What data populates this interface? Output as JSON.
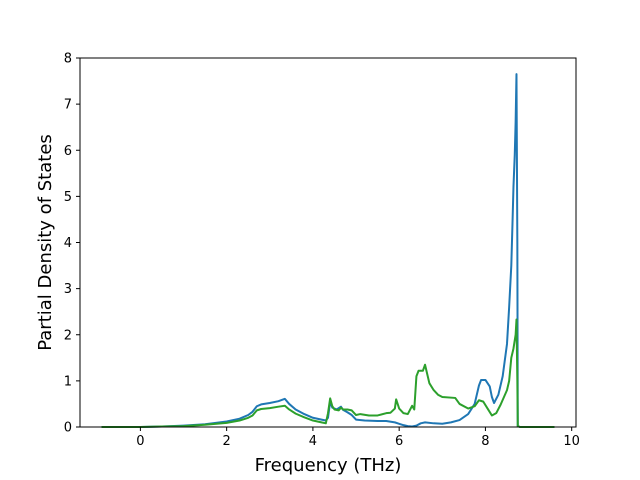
{
  "chart_data": {
    "type": "line",
    "title": "",
    "xlabel": "Frequency (THz)",
    "ylabel": "Partial Density of States",
    "xlim": [
      -1.4,
      10.1
    ],
    "ylim": [
      0,
      8
    ],
    "x_ticks": [
      0,
      2,
      4,
      6,
      8,
      10
    ],
    "y_ticks": [
      0,
      1,
      2,
      3,
      4,
      5,
      6,
      7,
      8
    ],
    "x_tick_labels": [
      "0",
      "2",
      "4",
      "6",
      "8",
      "10"
    ],
    "y_tick_labels": [
      "0",
      "1",
      "2",
      "3",
      "4",
      "5",
      "6",
      "7",
      "8"
    ],
    "grid": false,
    "legend": null,
    "series": [
      {
        "color": "#1f77b4",
        "points": [
          [
            -0.9,
            0
          ],
          [
            0.0,
            0.0
          ],
          [
            0.5,
            0.01
          ],
          [
            1.0,
            0.03
          ],
          [
            1.5,
            0.06
          ],
          [
            2.0,
            0.12
          ],
          [
            2.3,
            0.18
          ],
          [
            2.5,
            0.26
          ],
          [
            2.6,
            0.33
          ],
          [
            2.7,
            0.45
          ],
          [
            2.8,
            0.49
          ],
          [
            3.0,
            0.52
          ],
          [
            3.2,
            0.56
          ],
          [
            3.35,
            0.61
          ],
          [
            3.45,
            0.5
          ],
          [
            3.6,
            0.38
          ],
          [
            3.8,
            0.28
          ],
          [
            4.0,
            0.2
          ],
          [
            4.2,
            0.16
          ],
          [
            4.3,
            0.14
          ],
          [
            4.35,
            0.2
          ],
          [
            4.4,
            0.55
          ],
          [
            4.45,
            0.42
          ],
          [
            4.55,
            0.38
          ],
          [
            4.65,
            0.44
          ],
          [
            4.7,
            0.37
          ],
          [
            4.8,
            0.32
          ],
          [
            4.9,
            0.26
          ],
          [
            5.0,
            0.16
          ],
          [
            5.2,
            0.14
          ],
          [
            5.5,
            0.13
          ],
          [
            5.7,
            0.13
          ],
          [
            5.9,
            0.1
          ],
          [
            6.0,
            0.07
          ],
          [
            6.1,
            0.04
          ],
          [
            6.2,
            0.02
          ],
          [
            6.3,
            0.01
          ],
          [
            6.4,
            0.03
          ],
          [
            6.5,
            0.08
          ],
          [
            6.6,
            0.1
          ],
          [
            6.8,
            0.08
          ],
          [
            7.0,
            0.07
          ],
          [
            7.2,
            0.1
          ],
          [
            7.4,
            0.15
          ],
          [
            7.6,
            0.28
          ],
          [
            7.75,
            0.5
          ],
          [
            7.85,
            0.9
          ],
          [
            7.9,
            1.02
          ],
          [
            8.0,
            1.02
          ],
          [
            8.1,
            0.88
          ],
          [
            8.15,
            0.65
          ],
          [
            8.2,
            0.52
          ],
          [
            8.3,
            0.7
          ],
          [
            8.4,
            1.1
          ],
          [
            8.5,
            1.8
          ],
          [
            8.55,
            2.6
          ],
          [
            8.6,
            3.5
          ],
          [
            8.63,
            4.5
          ],
          [
            8.65,
            5.2
          ],
          [
            8.68,
            5.9
          ],
          [
            8.7,
            6.6
          ],
          [
            8.72,
            7.65
          ],
          [
            8.74,
            4.0
          ],
          [
            8.75,
            0.02
          ],
          [
            8.8,
            0
          ],
          [
            9.6,
            0
          ]
        ]
      },
      {
        "color": "#2ca02c",
        "points": [
          [
            -0.9,
            0
          ],
          [
            0.0,
            0.0
          ],
          [
            0.5,
            0.01
          ],
          [
            1.0,
            0.02
          ],
          [
            1.5,
            0.05
          ],
          [
            2.0,
            0.09
          ],
          [
            2.3,
            0.14
          ],
          [
            2.5,
            0.2
          ],
          [
            2.6,
            0.25
          ],
          [
            2.7,
            0.36
          ],
          [
            2.8,
            0.39
          ],
          [
            3.0,
            0.41
          ],
          [
            3.2,
            0.44
          ],
          [
            3.35,
            0.46
          ],
          [
            3.45,
            0.38
          ],
          [
            3.6,
            0.29
          ],
          [
            3.8,
            0.21
          ],
          [
            4.0,
            0.14
          ],
          [
            4.2,
            0.1
          ],
          [
            4.3,
            0.08
          ],
          [
            4.35,
            0.3
          ],
          [
            4.4,
            0.62
          ],
          [
            4.45,
            0.45
          ],
          [
            4.5,
            0.38
          ],
          [
            4.6,
            0.36
          ],
          [
            4.65,
            0.42
          ],
          [
            4.7,
            0.38
          ],
          [
            4.8,
            0.38
          ],
          [
            4.9,
            0.36
          ],
          [
            5.0,
            0.26
          ],
          [
            5.1,
            0.28
          ],
          [
            5.3,
            0.25
          ],
          [
            5.5,
            0.25
          ],
          [
            5.7,
            0.3
          ],
          [
            5.8,
            0.31
          ],
          [
            5.9,
            0.4
          ],
          [
            5.93,
            0.6
          ],
          [
            6.0,
            0.4
          ],
          [
            6.1,
            0.3
          ],
          [
            6.2,
            0.28
          ],
          [
            6.3,
            0.46
          ],
          [
            6.35,
            0.38
          ],
          [
            6.4,
            1.1
          ],
          [
            6.45,
            1.22
          ],
          [
            6.55,
            1.22
          ],
          [
            6.6,
            1.35
          ],
          [
            6.7,
            0.95
          ],
          [
            6.8,
            0.8
          ],
          [
            6.9,
            0.7
          ],
          [
            7.0,
            0.65
          ],
          [
            7.3,
            0.63
          ],
          [
            7.4,
            0.5
          ],
          [
            7.6,
            0.4
          ],
          [
            7.75,
            0.45
          ],
          [
            7.85,
            0.58
          ],
          [
            7.95,
            0.55
          ],
          [
            8.05,
            0.4
          ],
          [
            8.15,
            0.25
          ],
          [
            8.25,
            0.3
          ],
          [
            8.35,
            0.48
          ],
          [
            8.5,
            0.8
          ],
          [
            8.55,
            1.0
          ],
          [
            8.6,
            1.5
          ],
          [
            8.65,
            1.7
          ],
          [
            8.7,
            2.0
          ],
          [
            8.72,
            2.33
          ],
          [
            8.74,
            1.0
          ],
          [
            8.75,
            0.02
          ],
          [
            8.8,
            0
          ],
          [
            9.6,
            0
          ]
        ]
      }
    ]
  }
}
